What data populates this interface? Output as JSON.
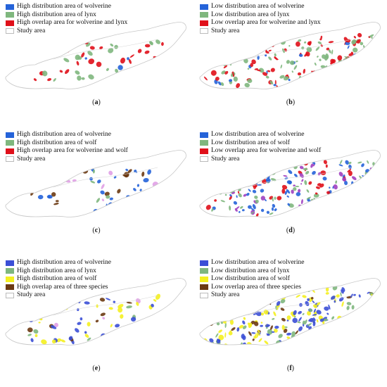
{
  "panels": [
    {
      "label": "a",
      "legend": [
        {
          "text": "High distribution area of wolverine",
          "color": "#2563d9"
        },
        {
          "text": "High distribution area of lynx",
          "color": "#7fb77e"
        },
        {
          "text": "High overlap area for wolverine and lynx",
          "color": "#e0101a"
        },
        {
          "text": "Study area",
          "color": "outline"
        }
      ]
    },
    {
      "label": "b",
      "legend": [
        {
          "text": "Low distribution area of wolverine",
          "color": "#2563d9"
        },
        {
          "text": "Low distribution area of lynx",
          "color": "#7fb77e"
        },
        {
          "text": "Low overlap area for wolverine and lynx",
          "color": "#e0101a"
        },
        {
          "text": "Study area",
          "color": "outline"
        }
      ]
    },
    {
      "label": "c",
      "legend": [
        {
          "text": "High distribution area of wolverine",
          "color": "#2563d9"
        },
        {
          "text": "High distribution area of wolf",
          "color": "#7fb77e"
        },
        {
          "text": "High overlap area for wolverine and wolf",
          "color": "#e0101a"
        },
        {
          "text": "Study area",
          "color": "outline"
        }
      ]
    },
    {
      "label": "d",
      "legend": [
        {
          "text": "Low distribution area of wolverine",
          "color": "#2563d9"
        },
        {
          "text": "Low distribution area of wolf",
          "color": "#7fb77e"
        },
        {
          "text": "Low overlap area for wolverine and wolf",
          "color": "#e0101a"
        },
        {
          "text": "Study area",
          "color": "outline"
        }
      ]
    },
    {
      "label": "e",
      "legend": [
        {
          "text": "High distribution area of wolverine",
          "color": "#3b4fd6"
        },
        {
          "text": "High distribution area of lynx",
          "color": "#7fb77e"
        },
        {
          "text": "High distribution area of wolf",
          "color": "#f4f020"
        },
        {
          "text": "High overlap area of three species",
          "color": "#6b3a12"
        },
        {
          "text": "Study area",
          "color": "outline"
        }
      ]
    },
    {
      "label": "f",
      "legend": [
        {
          "text": "Low distribution area of wolverine",
          "color": "#3b4fd6"
        },
        {
          "text": "Low distribution area of lynx",
          "color": "#7fb77e"
        },
        {
          "text": "Low distribution area of wolf",
          "color": "#f4f020"
        },
        {
          "text": "Low overlap area of three species",
          "color": "#6b3a12"
        },
        {
          "text": "Study area",
          "color": "outline"
        }
      ]
    }
  ]
}
